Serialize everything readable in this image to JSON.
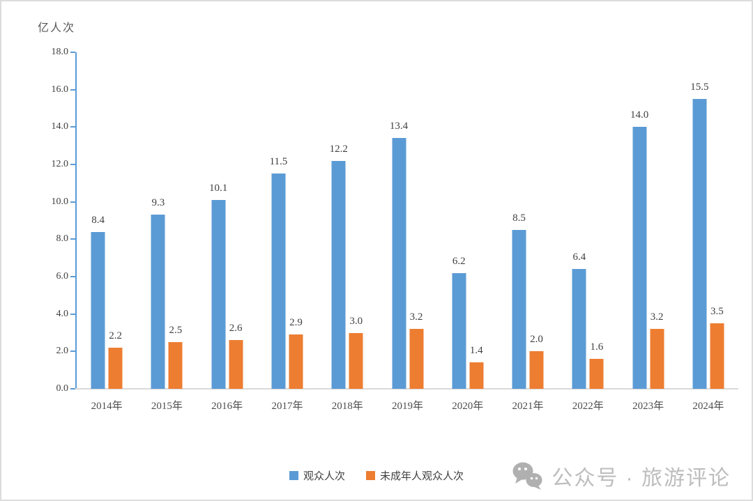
{
  "chart_data": {
    "type": "bar",
    "title": "",
    "ylabel": "亿人次",
    "xlabel": "",
    "categories": [
      "2014年",
      "2015年",
      "2016年",
      "2017年",
      "2018年",
      "2019年",
      "2020年",
      "2021年",
      "2022年",
      "2023年",
      "2024年"
    ],
    "series": [
      {
        "name": "观众人次",
        "color": "#5B9BD5",
        "values": [
          8.4,
          9.3,
          10.1,
          11.5,
          12.2,
          13.4,
          6.2,
          8.5,
          6.4,
          14.0,
          15.5
        ]
      },
      {
        "name": "未成年人观众人次",
        "color": "#ED7D31",
        "values": [
          2.2,
          2.5,
          2.6,
          2.9,
          3.0,
          3.2,
          1.4,
          2.0,
          1.6,
          3.2,
          3.5
        ]
      }
    ],
    "ylim": [
      0,
      18
    ],
    "y_tick_step": 2,
    "y_tick_labels_top_to_bottom": [
      "18.0",
      "16.0",
      "14.0",
      "12.0",
      "10.0",
      "8.0",
      "6.0",
      "4.0",
      "2.0",
      "0.0"
    ],
    "value_label_decimals": 1,
    "grid": false,
    "legend_position": "bottom-center",
    "colors": {
      "axis": "#5B9BD5",
      "baseline": "#D9D9D9",
      "tick_label": "#404040",
      "value_label": "#404040",
      "category_label": "#4d4d4d",
      "unit_label": "#595959"
    }
  },
  "watermark": {
    "icon": "wechat-icon",
    "icon_color": "#b0b0b0",
    "text": "公众号 · 旅游评论",
    "text_color": "#bdbdbd"
  }
}
